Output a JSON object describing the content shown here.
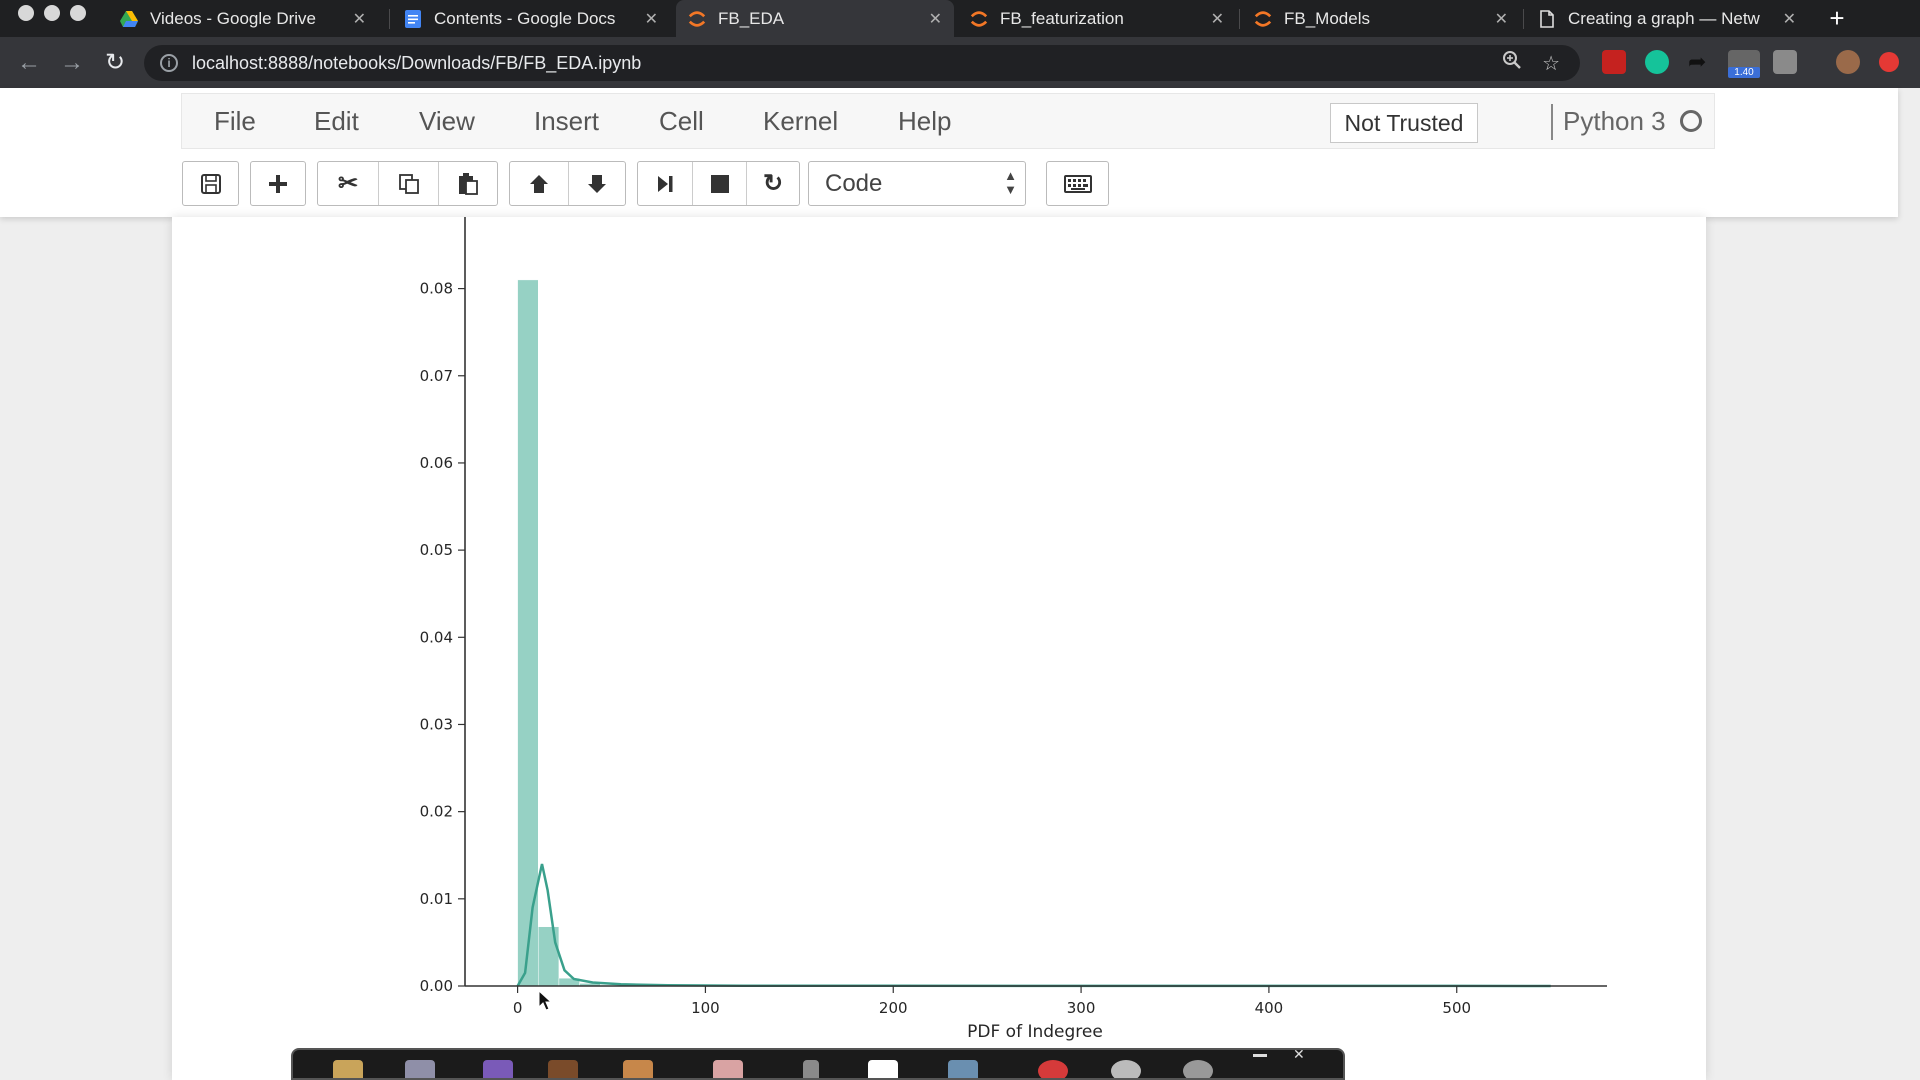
{
  "browser": {
    "tabs": [
      {
        "title": "Videos - Google Drive",
        "icon": "google-drive-icon",
        "active": false
      },
      {
        "title": "Contents - Google Docs",
        "icon": "google-docs-icon",
        "active": false
      },
      {
        "title": "FB_EDA",
        "icon": "jupyter-icon",
        "active": true
      },
      {
        "title": "FB_featurization",
        "icon": "jupyter-icon",
        "active": false
      },
      {
        "title": "FB_Models",
        "icon": "jupyter-icon",
        "active": false
      },
      {
        "title": "Creating a graph — Netw",
        "icon": "document-icon",
        "active": false
      }
    ],
    "close_glyph": "✕",
    "new_tab_glyph": "+",
    "url": "localhost:8888/notebooks/Downloads/FB/FB_EDA.ipynb",
    "extension_badge": "1.40"
  },
  "jupyter": {
    "menu": [
      "File",
      "Edit",
      "View",
      "Insert",
      "Cell",
      "Kernel",
      "Help"
    ],
    "trust_status": "Not Trusted",
    "kernel": "Python 3",
    "cell_type": "Code"
  },
  "colors": {
    "hist_bar": "#96d1c4",
    "kde_line": "#3aa08c",
    "axis": "#333333"
  },
  "chart_data": {
    "type": "histogram",
    "xlabel": "PDF of Indegree",
    "ylabel": "",
    "xlim": [
      -28,
      580
    ],
    "ylim": [
      0,
      0.085
    ],
    "xticks": [
      0,
      100,
      200,
      300,
      400,
      500
    ],
    "xtick_labels": [
      "0",
      "100",
      "200",
      "300",
      "400",
      "500"
    ],
    "yticks": [
      0.0,
      0.01,
      0.02,
      0.03,
      0.04,
      0.05,
      0.06,
      0.07,
      0.08
    ],
    "ytick_labels": [
      "0.00",
      "0.01",
      "0.02",
      "0.03",
      "0.04",
      "0.05",
      "0.06",
      "0.07",
      "0.08"
    ],
    "bins": [
      {
        "x0": 0,
        "x1": 11,
        "density": 0.081
      },
      {
        "x0": 11,
        "x1": 22,
        "density": 0.0068
      },
      {
        "x0": 22,
        "x1": 33,
        "density": 0.0009
      },
      {
        "x0": 33,
        "x1": 44,
        "density": 0.0003
      },
      {
        "x0": 44,
        "x1": 55,
        "density": 0.0001
      }
    ],
    "kde": {
      "x": [
        0,
        4,
        8,
        13,
        16,
        20,
        25,
        30,
        40,
        55,
        80,
        120,
        200,
        300,
        400,
        500,
        550
      ],
      "y": [
        0.0,
        0.0015,
        0.009,
        0.014,
        0.011,
        0.005,
        0.0018,
        0.0008,
        0.0004,
        0.0002,
        8e-05,
        4e-05,
        2e-05,
        1e-05,
        1e-05,
        1e-05,
        0.0
      ]
    }
  }
}
